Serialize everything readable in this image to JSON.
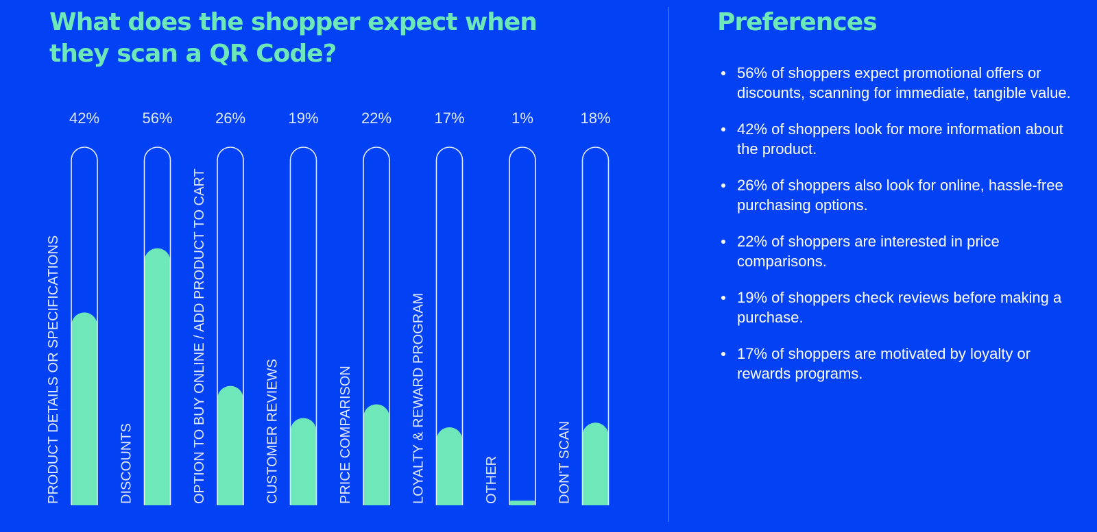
{
  "colors": {
    "background": "#0341f5",
    "accent": "#6ee8b9",
    "text": "#ffffff"
  },
  "left": {
    "title": "What does the shopper expect when they scan a QR Code?"
  },
  "chart_data": {
    "type": "bar",
    "orientation": "vertical",
    "title": "What does the shopper expect when they scan a QR Code?",
    "categories": [
      "PRODUCT DETAILS OR SPECIFICATIONS",
      "DISCOUNTS",
      "OPTION TO BUY ONLINE / ADD PRODUCT TO CART",
      "CUSTOMER REVIEWS",
      "PRICE COMPARISON",
      "LOYALTY & REWARD PROGRAM",
      "OTHER",
      "DON'T SCAN"
    ],
    "values": [
      42,
      56,
      26,
      19,
      22,
      17,
      1,
      18
    ],
    "value_labels": [
      "42%",
      "56%",
      "26%",
      "19%",
      "22%",
      "17%",
      "1%",
      "18%"
    ],
    "ylim": [
      0,
      100
    ],
    "unit": "%",
    "grid": false,
    "legend": "none"
  },
  "right": {
    "title": "Preferences",
    "items": [
      "56% of shoppers expect promotional offers or discounts, scanning for immediate, tangible value.",
      "42% of shoppers look for more information about the product.",
      "26% of shoppers also look for online, hassle-free purchasing options.",
      "22% of shoppers are interested in price comparisons.",
      "19% of shoppers check reviews before making a purchase.",
      "17% of shoppers are motivated by loyalty or rewards programs."
    ]
  }
}
